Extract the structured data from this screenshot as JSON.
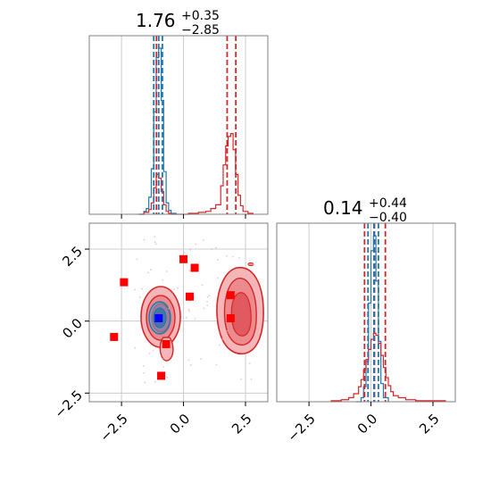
{
  "chart_data": {
    "type": "corner",
    "colors": {
      "blue": "#1f77b4",
      "red": "#d62728",
      "marker": "#ff0000",
      "truth": "#0000ff"
    },
    "panels": [
      {
        "id": "hist-param-1",
        "type": "histogram",
        "title": {
          "value": "1.76",
          "sup": "+0.35",
          "sub": "−2.85"
        },
        "xlim": [
          -3.8,
          3.4
        ],
        "quantiles_blue": [
          -1.2,
          -1.0,
          -0.85
        ],
        "quantiles_red": [
          -1.09,
          1.76,
          2.11
        ],
        "series": [
          {
            "color": "blue",
            "x": [
              -1.8,
              -1.6,
              -1.5,
              -1.4,
              -1.3,
              -1.2,
              -1.1,
              -1.0,
              -0.9,
              -0.8,
              -0.7,
              -0.6,
              -0.5,
              -0.3
            ],
            "y": [
              0,
              3,
              6,
              18,
              48,
              108,
              165,
              175,
              120,
              45,
              12,
              4,
              1,
              0
            ]
          },
          {
            "color": "red",
            "x": [
              -1.8,
              -1.6,
              -1.4,
              -1.3,
              -1.2,
              -1.1,
              -1.0,
              -0.9,
              -0.8,
              -0.7,
              -0.6,
              -0.5,
              0.2,
              0.6,
              0.9,
              1.1,
              1.3,
              1.5,
              1.6,
              1.7,
              1.8,
              1.9,
              2.0,
              2.1,
              2.2,
              2.3,
              2.4,
              2.6,
              2.8
            ],
            "y": [
              0,
              2,
              5,
              12,
              28,
              42,
              38,
              24,
              10,
              3,
              1,
              0,
              1,
              2,
              3,
              6,
              10,
              30,
              52,
              72,
              82,
              85,
              68,
              42,
              20,
              9,
              3,
              1,
              0
            ]
          }
        ]
      },
      {
        "id": "scatter-2d",
        "type": "scatter",
        "xlim": [
          -3.8,
          3.4
        ],
        "ylim": [
          -2.8,
          3.4
        ],
        "xticks": [
          "−2.5",
          "0.0",
          "2.5"
        ],
        "yticks": [
          "−2.5",
          "0.0",
          "2.5"
        ],
        "markers": [
          {
            "x": -2.4,
            "y": 1.35
          },
          {
            "x": 0.0,
            "y": 2.15
          },
          {
            "x": 0.45,
            "y": 1.85
          },
          {
            "x": 0.25,
            "y": 0.85
          },
          {
            "x": 1.9,
            "y": 0.9
          },
          {
            "x": 1.9,
            "y": 0.1
          },
          {
            "x": -2.8,
            "y": -0.55
          },
          {
            "x": -0.7,
            "y": -0.8
          },
          {
            "x": -0.9,
            "y": -1.9
          }
        ],
        "truth": {
          "x": -1.0,
          "y": 0.1
        },
        "grid": true
      },
      {
        "id": "hist-param-2",
        "type": "histogram",
        "title": {
          "value": "0.14",
          "sup": "+0.44",
          "sub": "−0.40"
        },
        "xlim": [
          -3.8,
          3.4
        ],
        "xticks": [
          "−2.5",
          "0.0",
          "2.5"
        ],
        "quantiles_blue": [
          -0.12,
          0.12,
          0.3
        ],
        "quantiles_red": [
          -0.26,
          0.14,
          0.58
        ],
        "series": [
          {
            "color": "blue",
            "x": [
              -0.6,
              -0.4,
              -0.3,
              -0.2,
              -0.1,
              0.0,
              0.1,
              0.2,
              0.3,
              0.4,
              0.5,
              0.7
            ],
            "y": [
              0,
              4,
              15,
              40,
              98,
              150,
              165,
              120,
              60,
              18,
              4,
              0
            ]
          },
          {
            "color": "red",
            "x": [
              -1.6,
              -1.2,
              -0.9,
              -0.7,
              -0.5,
              -0.4,
              -0.3,
              -0.2,
              -0.1,
              0.0,
              0.1,
              0.2,
              0.3,
              0.4,
              0.5,
              0.6,
              0.7,
              0.8,
              0.9,
              1.1,
              1.4,
              1.8,
              2.5,
              3.0
            ],
            "y": [
              1,
              2,
              4,
              8,
              15,
              22,
              32,
              42,
              52,
              62,
              68,
              66,
              58,
              46,
              34,
              24,
              16,
              10,
              6,
              4,
              2,
              1,
              1,
              0
            ]
          }
        ]
      }
    ]
  }
}
